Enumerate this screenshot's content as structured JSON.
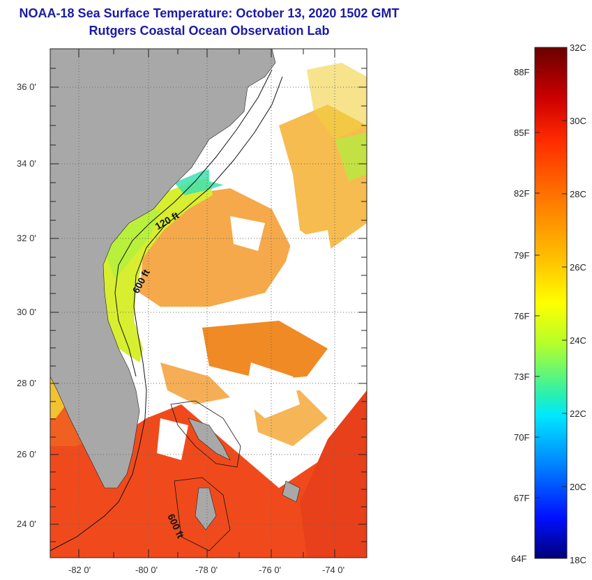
{
  "title": "NOAA-18 Sea Surface Temperature:  October 13, 2020 1502 GMT",
  "subtitle": "Rutgers Coastal Ocean Observation Lab",
  "map": {
    "lat_ticks": [
      "36 0'",
      "34 0'",
      "32 0'",
      "30 0'",
      "28 0'",
      "26 0'",
      "24 0'"
    ],
    "lon_ticks": [
      "-82 0'",
      "-80 0'",
      "-78 0'",
      "-76 0'",
      "-74 0'"
    ],
    "isobaths": [
      "120 ft",
      "600 ft",
      "600 ft"
    ],
    "colors": {
      "land": "#a8a8a8",
      "cloud": "#ffffff",
      "grid": "#666666"
    }
  },
  "colorbar": {
    "celsius": [
      "32C",
      "30C",
      "28C",
      "26C",
      "24C",
      "22C",
      "20C",
      "18C"
    ],
    "fahrenheit": [
      "88F",
      "85F",
      "82F",
      "79F",
      "76F",
      "73F",
      "70F",
      "67F",
      "64F"
    ],
    "colors": [
      "#7a0000",
      "#e60000",
      "#ff6a00",
      "#ffd000",
      "#c8ff00",
      "#00e0c0",
      "#0090ff",
      "#0000c8",
      "#000080"
    ]
  }
}
